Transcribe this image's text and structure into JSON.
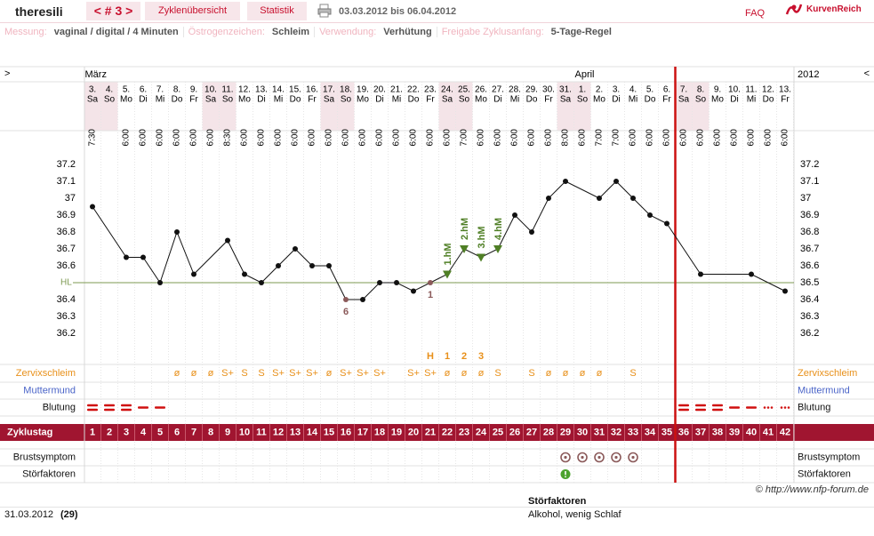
{
  "header": {
    "user": "theresili",
    "cycle_nav": "< # 3 >",
    "tabs": [
      "Zyklenübersicht",
      "Statistik"
    ],
    "date_range": "03.03.2012 bis 06.04.2012",
    "faq": "FAQ",
    "logo": "KurvenReich"
  },
  "settings": [
    {
      "label": "Messung:",
      "value": "vaginal / digital / 4 Minuten"
    },
    {
      "label": "Östrogenzeichen:",
      "value": "Schleim"
    },
    {
      "label": "Verwendung:",
      "value": "Verhütung"
    },
    {
      "label": "Freigabe Zyklusanfang:",
      "value": "5-Tage-Regel"
    }
  ],
  "chart_data": {
    "type": "nfp-cycle",
    "nav_prev": ">",
    "nav_next": "<",
    "year": "2012",
    "months": [
      {
        "label": "März",
        "day": 1
      },
      {
        "label": "April",
        "day": 30
      }
    ],
    "dates": [
      "3.",
      "4.",
      "5.",
      "6.",
      "7.",
      "8.",
      "9.",
      "10.",
      "11.",
      "12.",
      "13.",
      "14.",
      "15.",
      "16.",
      "17.",
      "18.",
      "19.",
      "20.",
      "21.",
      "22.",
      "23.",
      "24.",
      "25.",
      "26.",
      "27.",
      "28.",
      "29.",
      "30.",
      "31.",
      "1.",
      "2.",
      "3.",
      "4.",
      "5.",
      "6.",
      "7.",
      "8.",
      "9.",
      "10.",
      "11.",
      "12.",
      "13."
    ],
    "weekdays": [
      "Sa",
      "So",
      "Mo",
      "Di",
      "Mi",
      "Do",
      "Fr",
      "Sa",
      "So",
      "Mo",
      "Di",
      "Mi",
      "Do",
      "Fr",
      "Sa",
      "So",
      "Mo",
      "Di",
      "Mi",
      "Do",
      "Fr",
      "Sa",
      "So",
      "Mo",
      "Di",
      "Mi",
      "Do",
      "Fr",
      "Sa",
      "So",
      "Mo",
      "Di",
      "Mi",
      "Do",
      "Fr",
      "Sa",
      "So",
      "Mo",
      "Di",
      "Mi",
      "Do",
      "Fr"
    ],
    "times": [
      "7:30",
      null,
      "6:00",
      "6:00",
      "6:00",
      "6:00",
      "6:00",
      "6:00",
      "8:30",
      "6:00",
      "6:00",
      "6:00",
      "6:00",
      "6:00",
      "6:00",
      "6:00",
      "6:00",
      "6:00",
      "6:00",
      "6:00",
      "6:00",
      "6:00",
      "7:00",
      "6:00",
      "6:00",
      "6:00",
      "6:00",
      "6:00",
      "8:00",
      "6:00",
      "7:00",
      "7:00",
      "6:00",
      "6:00",
      "6:00",
      "6:00",
      "6:00",
      "6:00",
      "6:00",
      "6:00",
      "6:00",
      "6:00"
    ],
    "weekend_days": [
      1,
      2,
      8,
      9,
      15,
      16,
      22,
      23,
      29,
      30,
      36,
      37
    ],
    "cycle_days": [
      1,
      2,
      3,
      4,
      5,
      6,
      7,
      8,
      9,
      10,
      11,
      12,
      13,
      14,
      15,
      16,
      17,
      18,
      19,
      20,
      21,
      22,
      23,
      24,
      25,
      26,
      27,
      28,
      29,
      30,
      31,
      32,
      33,
      34,
      35,
      36,
      37,
      38,
      39,
      40,
      41,
      42
    ],
    "cycle_end_day": 35,
    "temperature": {
      "days": [
        1,
        3,
        4,
        5,
        6,
        7,
        9,
        10,
        11,
        12,
        13,
        14,
        15,
        16,
        17,
        18,
        19,
        20,
        21,
        22,
        23,
        24,
        25,
        26,
        27,
        28,
        29,
        31,
        32,
        33,
        34,
        35,
        37,
        40,
        42
      ],
      "values": [
        36.95,
        36.65,
        36.65,
        36.5,
        36.8,
        36.55,
        36.75,
        36.55,
        36.5,
        36.6,
        36.7,
        36.6,
        36.6,
        36.4,
        36.4,
        36.5,
        36.5,
        36.45,
        36.5,
        36.55,
        36.7,
        36.65,
        36.7,
        36.9,
        36.8,
        37.0,
        37.1,
        37.0,
        37.1,
        37.0,
        36.9,
        36.85,
        36.55,
        36.55,
        36.45
      ],
      "excluded_days": [
        16,
        21
      ]
    },
    "annotations": [
      {
        "day": 16,
        "label": "6"
      },
      {
        "day": 21,
        "label": "1"
      }
    ],
    "ylim": [
      36.1,
      37.4
    ],
    "yticks": [
      36.2,
      36.3,
      36.4,
      36.5,
      36.6,
      36.7,
      36.8,
      36.9,
      37,
      37.1,
      37.2
    ],
    "coverline": {
      "label": "HL",
      "value": 36.5
    },
    "high_marks": [
      {
        "day": 22,
        "label": "1.hM"
      },
      {
        "day": 23,
        "label": "2.hM"
      },
      {
        "day": 24,
        "label": "3.hM"
      },
      {
        "day": 25,
        "label": "4.hM"
      }
    ],
    "mucus_peak": [
      {
        "day": 21,
        "label": "H"
      },
      {
        "day": 22,
        "label": "1"
      },
      {
        "day": 23,
        "label": "2"
      },
      {
        "day": 24,
        "label": "3"
      }
    ],
    "row_labels": {
      "mucus": "Zervixschleim",
      "cervix": "Muttermund",
      "bleeding": "Blutung",
      "cycle_day": "Zyklustag",
      "breast": "Brustsymptom",
      "disturbance": "Störfaktoren"
    },
    "mucus": [
      null,
      null,
      null,
      null,
      null,
      "ø",
      "ø",
      "ø",
      "S+",
      "S",
      "S",
      "S+",
      "S+",
      "S+",
      "ø",
      "S+",
      "S+",
      "S+",
      null,
      "S+",
      "S+",
      "ø",
      "ø",
      "ø",
      "S",
      null,
      "S",
      "ø",
      "ø",
      "ø",
      "ø",
      null,
      "S",
      null,
      null,
      null,
      null,
      null,
      null,
      null,
      null,
      null
    ],
    "bleeding": [
      3,
      3,
      3,
      2,
      2,
      null,
      null,
      null,
      null,
      null,
      null,
      null,
      null,
      null,
      null,
      null,
      null,
      null,
      null,
      null,
      null,
      null,
      null,
      null,
      null,
      null,
      null,
      null,
      null,
      null,
      null,
      null,
      null,
      null,
      null,
      3,
      3,
      3,
      2,
      2,
      1,
      1
    ],
    "breast_days": [
      29,
      30,
      31,
      32,
      33
    ],
    "disturbance_days": [
      29
    ]
  },
  "copyright": "© http://www.nfp-forum.de",
  "footer": {
    "date": "31.03.2012",
    "cycle_day": "(29)",
    "disturbance_title": "Störfaktoren",
    "disturbance_text": "Alkohol, wenig Schlaf"
  }
}
